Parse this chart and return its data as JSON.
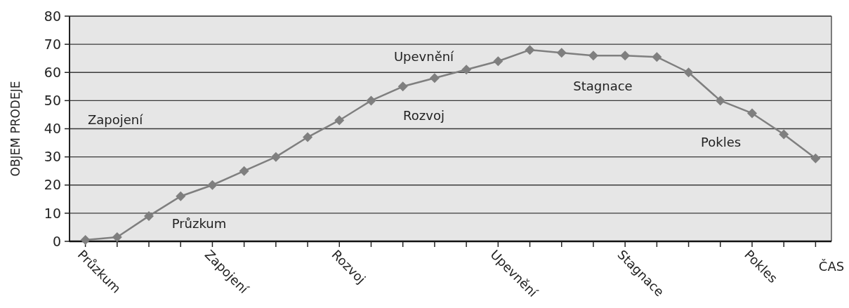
{
  "chart_data": {
    "type": "line",
    "ylabel": "OBJEM PRODEJE",
    "xlabel": "ČAS",
    "categories": [
      "Průzkum",
      null,
      null,
      null,
      "Zapojení",
      null,
      null,
      null,
      "Rozvoj",
      null,
      null,
      null,
      null,
      "Upevnění",
      null,
      null,
      null,
      "Stagnace",
      null,
      null,
      null,
      "Pokles",
      null,
      null
    ],
    "series": [
      {
        "color": "#7f7f7f",
        "values": [
          0.5,
          1.5,
          9,
          16,
          20,
          25,
          30,
          37,
          43,
          50,
          55,
          58,
          61,
          64,
          68,
          67,
          66,
          66,
          65.5,
          60,
          50,
          45.5,
          38,
          29.5
        ]
      }
    ],
    "ylim": [
      0,
      80
    ],
    "yticks": [
      0,
      10,
      20,
      30,
      40,
      50,
      60,
      70,
      80
    ],
    "grid": "y",
    "marker": "diamond",
    "line_style": "solid",
    "annotations": [
      "Průzkum",
      "Zapojení",
      "Rozvoj",
      "Upevnění",
      "Stagnace",
      "Pokles"
    ]
  }
}
